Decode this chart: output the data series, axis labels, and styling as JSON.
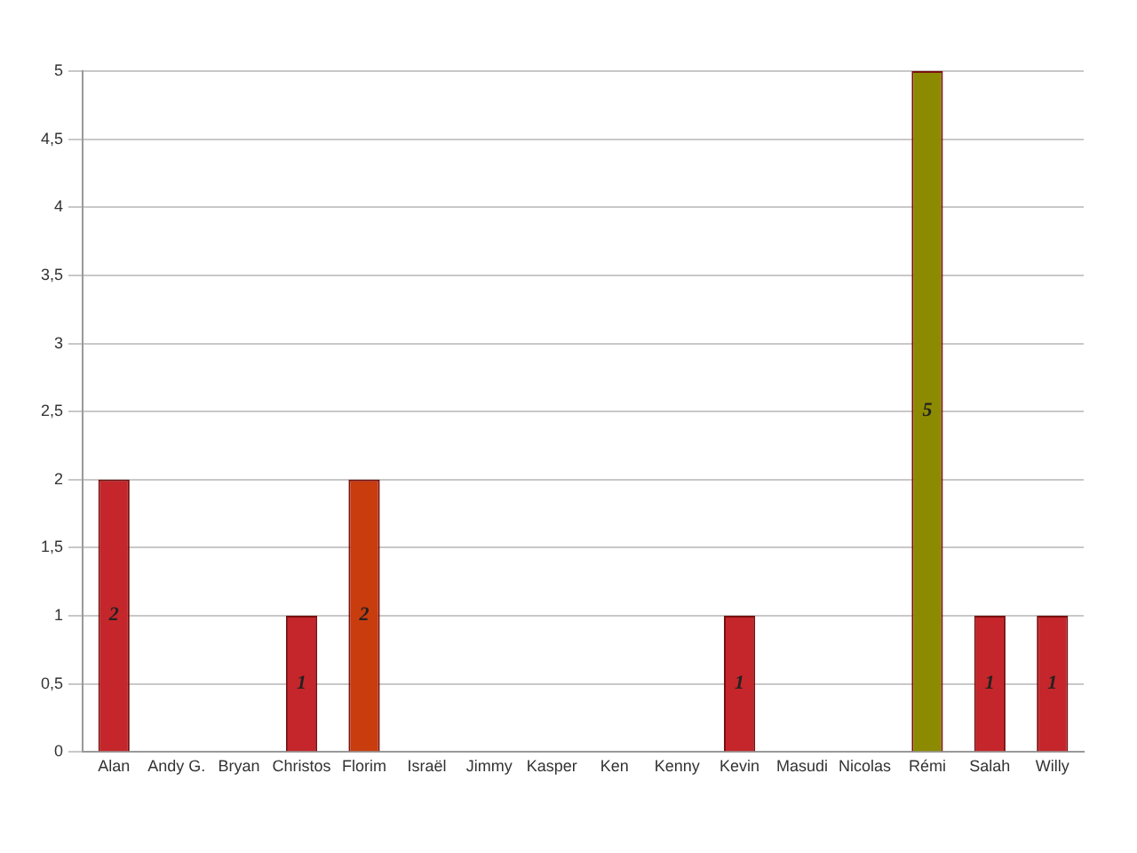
{
  "chart_data": {
    "type": "bar",
    "categories": [
      "Alan",
      "Andy G.",
      "Bryan",
      "Christos",
      "Florim",
      "Israël",
      "Jimmy",
      "Kasper",
      "Ken",
      "Kenny",
      "Kevin",
      "Masudi",
      "Nicolas",
      "Rémi",
      "Salah",
      "Willy"
    ],
    "values": [
      2,
      0,
      0,
      1,
      2,
      0,
      0,
      0,
      0,
      0,
      1,
      0,
      0,
      5,
      1,
      1
    ],
    "colors": [
      "#c4262b",
      "#c4262b",
      "#c4262b",
      "#c4262b",
      "#c83c0e",
      "#c4262b",
      "#c4262b",
      "#c4262b",
      "#c4262b",
      "#c4262b",
      "#c4262b",
      "#c4262b",
      "#c4262b",
      "#8c8a00",
      "#c4262b",
      "#c4262b"
    ],
    "value_labels": [
      "2",
      null,
      null,
      "1",
      "2",
      null,
      null,
      null,
      null,
      null,
      "1",
      null,
      null,
      "5",
      "1",
      "1"
    ],
    "ylim": [
      0,
      5
    ],
    "yticks": [
      0,
      {
        "value": 0.5,
        "label": "0,5"
      },
      1,
      {
        "value": 1.5,
        "label": "1,5"
      },
      2,
      {
        "value": 2.5,
        "label": "2,5"
      },
      3,
      {
        "value": 3.5,
        "label": "3,5"
      },
      4,
      {
        "value": 4.5,
        "label": "4,5"
      },
      5
    ],
    "grid": "y",
    "legend": false
  }
}
